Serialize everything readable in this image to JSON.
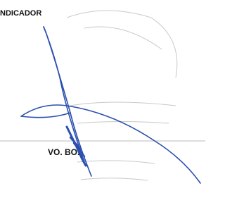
{
  "header": {
    "label": "NDICADOR"
  },
  "signature": {
    "label": "VO. BO."
  }
}
